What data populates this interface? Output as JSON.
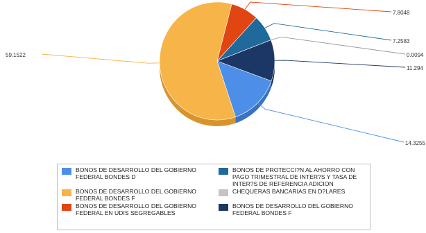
{
  "chart_data": {
    "type": "pie",
    "title": "",
    "slices": [
      {
        "label": "BONOS DE DESARROLLO DEL GOBIERNO FEDERAL BONDES D",
        "value": 14.3255,
        "display": "14.3255",
        "color": "#4d8ee8",
        "side_color": "#3a72c2"
      },
      {
        "label": "BONOS DE DESARROLLO DEL GOBIERNO FEDERAL BONDES F",
        "value": 59.1522,
        "display": "59.1522",
        "color": "#f7b448",
        "side_color": "#d8942c"
      },
      {
        "label": "BONOS DE DESARROLLO DEL GOBIERNO FEDERAL EN UDIS SEGREGABLES",
        "value": 7.8048,
        "display": "7.8048",
        "color": "#e04512",
        "side_color": "#b3350d"
      },
      {
        "label": "BONOS DE PROTECCI?N AL AHORRO CON PAGO TRIMESTRAL DE INTER?S Y TASA DE INTER?S DE REFERENCIA ADICION",
        "value": 7.2583,
        "display": "7.2583",
        "color": "#1f6a9a",
        "side_color": "#17527a"
      },
      {
        "label": "CHEQUERAS BANCARIAS EN D?LARES",
        "value": 0.0094,
        "display": "0.0094",
        "color": "#c4c4c4",
        "side_color": "#9e9e9e"
      },
      {
        "label": "BONOS DE DESARROLLO DEL GOBIERNO FEDERAL BONDES F",
        "value": 11.294,
        "display": "11.294",
        "color": "#1c3766",
        "side_color": "#142a50"
      }
    ]
  },
  "legend": {
    "left_column": [
      {
        "label": "BONOS DE DESARROLLO DEL GOBIERNO FEDERAL BONDES D",
        "color": "#4d8ee8"
      },
      {
        "label": "BONOS DE DESARROLLO DEL GOBIERNO FEDERAL BONDES F",
        "color": "#f7b448"
      },
      {
        "label": "BONOS DE DESARROLLO DEL GOBIERNO FEDERAL EN UDIS SEGREGABLES",
        "color": "#e04512"
      }
    ],
    "right_column": [
      {
        "label": "BONOS DE PROTECCI?N AL AHORRO CON PAGO TRIMESTRAL DE INTER?S Y TASA DE INTER?S DE REFERENCIA ADICION",
        "color": "#1f6a9a"
      },
      {
        "label": "CHEQUERAS BANCARIAS EN D?LARES",
        "color": "#c4c4c4"
      },
      {
        "label": "BONOS DE DESARROLLO DEL GOBIERNO FEDERAL BONDES F",
        "color": "#1c3766"
      }
    ]
  }
}
